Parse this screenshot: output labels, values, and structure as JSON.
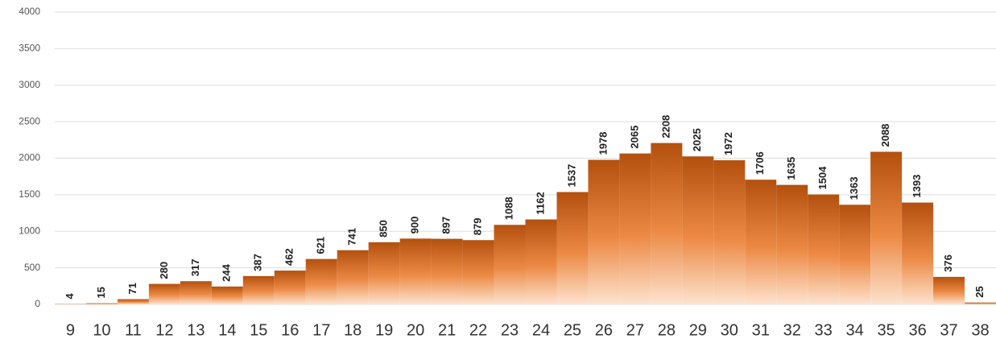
{
  "chart_data": {
    "type": "bar",
    "categories": [
      "9",
      "10",
      "11",
      "12",
      "13",
      "14",
      "15",
      "16",
      "17",
      "18",
      "19",
      "20",
      "21",
      "22",
      "23",
      "24",
      "25",
      "26",
      "27",
      "28",
      "29",
      "30",
      "31",
      "32",
      "33",
      "34",
      "35",
      "36",
      "37",
      "38"
    ],
    "values": [
      4,
      15,
      71,
      280,
      317,
      244,
      387,
      462,
      621,
      741,
      850,
      900,
      897,
      879,
      1088,
      1162,
      1537,
      1978,
      2065,
      2208,
      2025,
      1972,
      1706,
      1635,
      1504,
      1363,
      2088,
      1393,
      376,
      25
    ],
    "color": "#b4500e",
    "ylim": [
      0,
      4000
    ],
    "yticks": [
      0,
      500,
      1000,
      1500,
      2000,
      2500,
      3000,
      3500,
      4000
    ],
    "grid": true
  }
}
